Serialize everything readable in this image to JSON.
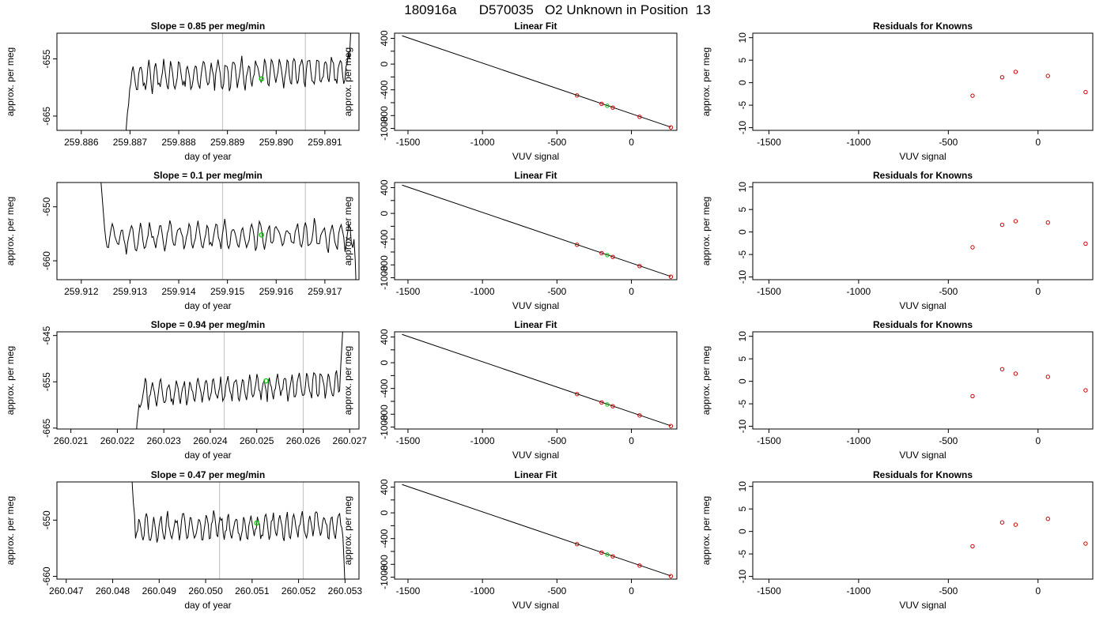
{
  "figure": {
    "title": "180916a      D570035   O2 Unknown in Position  13",
    "colors": {
      "trace": "#000000",
      "marker": "#00cc00",
      "known_point": "#cc0000",
      "vline": "#c8c8c8",
      "axis": "#000000"
    }
  },
  "chart_data": [
    {
      "type": "line",
      "row": 0,
      "col": 0,
      "title": "Slope =  0.85  per meg/min",
      "xlabel": "day of year",
      "ylabel": "approx. per meg",
      "xlim": [
        259.8855,
        259.8917
      ],
      "ylim": [
        -667.5,
        -650.5
      ],
      "xticks": [
        259.886,
        259.887,
        259.888,
        259.889,
        259.89,
        259.891
      ],
      "xtick_labels": [
        "259.886",
        "259.887",
        "259.888",
        "259.889",
        "259.890",
        "259.891"
      ],
      "yticks": [
        -665,
        -655
      ],
      "ytick_labels": [
        "-665",
        "-655"
      ],
      "vlines": [
        259.8889,
        259.8906
      ],
      "marker": {
        "x": 259.8897,
        "y": -658.5
      },
      "trace": {
        "x_start": 259.8869,
        "x_end": 259.89155,
        "n": 200,
        "level": -657.5,
        "start_values": [
          -680,
          -667,
          -664.5,
          -663
        ],
        "end_values": [
          -655,
          -651,
          -647
        ],
        "trend": 0.8,
        "amp": 2.4,
        "seed": 7
      }
    },
    {
      "type": "scatter",
      "row": 0,
      "col": 1,
      "title": "Linear Fit",
      "xlabel": "VUV signal",
      "ylabel": "approx. per meg",
      "xlim": [
        -1590,
        305
      ],
      "ylim": [
        -1030,
        480
      ],
      "xticks": [
        -1500,
        -1000,
        -500,
        0
      ],
      "xtick_labels": [
        "-1500",
        "-1000",
        "-500",
        "0"
      ],
      "yticks": [
        400,
        200,
        0,
        -200,
        -400,
        -600,
        -800,
        -1000
      ],
      "ytick_labels": [
        "400",
        "",
        "0",
        "",
        "-400",
        "",
        "-800",
        "-1000"
      ],
      "fit_line": {
        "x": [
          -1540,
          265
        ],
        "y": [
          440,
          -980
        ]
      },
      "points": [
        {
          "x": -365,
          "y": -487
        },
        {
          "x": -200,
          "y": -618
        },
        {
          "x": -125,
          "y": -676
        },
        {
          "x": 55,
          "y": -819
        },
        {
          "x": 265,
          "y": -984
        }
      ],
      "unknown_point": {
        "x": -162,
        "y": -648
      }
    },
    {
      "type": "scatter",
      "row": 0,
      "col": 2,
      "title": "Residuals for Knowns",
      "xlabel": "VUV signal",
      "ylabel": "approx. per meg",
      "xlim": [
        -1590,
        305
      ],
      "ylim": [
        -10.6,
        11
      ],
      "xticks": [
        -1500,
        -1000,
        -500,
        0
      ],
      "xtick_labels": [
        "-1500",
        "-1000",
        "-500",
        "0"
      ],
      "yticks": [
        10,
        5,
        0,
        -5,
        -10
      ],
      "ytick_labels": [
        "10",
        "5",
        "0",
        "-5",
        "-10"
      ],
      "points": [
        {
          "x": -365,
          "y": -2.9
        },
        {
          "x": -200,
          "y": 1.2
        },
        {
          "x": -125,
          "y": 2.4
        },
        {
          "x": 55,
          "y": 1.5
        },
        {
          "x": 265,
          "y": -2.1
        }
      ]
    },
    {
      "type": "line",
      "row": 1,
      "col": 0,
      "title": "Slope =  0.1  per meg/min",
      "xlabel": "day of year",
      "ylabel": "approx. per meg",
      "xlim": [
        259.9115,
        259.9177
      ],
      "ylim": [
        -663.5,
        -645.5
      ],
      "xticks": [
        259.912,
        259.913,
        259.914,
        259.915,
        259.916,
        259.917
      ],
      "xtick_labels": [
        "259.912",
        "259.913",
        "259.914",
        "259.915",
        "259.916",
        "259.917"
      ],
      "yticks": [
        -660,
        -650
      ],
      "ytick_labels": [
        "-660",
        "-650"
      ],
      "vlines": [
        259.9149,
        259.9166
      ],
      "marker": {
        "x": 259.9157,
        "y": -655.2
      },
      "trace": {
        "x_start": 259.9124,
        "x_end": 259.91765,
        "n": 200,
        "level": -655.5,
        "start_values": [
          -645,
          -648,
          -651,
          -654
        ],
        "end_values": [
          -656,
          -660,
          -667
        ],
        "trend": 0.1,
        "amp": 2.3,
        "seed": 11
      }
    },
    {
      "type": "scatter",
      "row": 1,
      "col": 1,
      "title": "Linear Fit",
      "xlabel": "VUV signal",
      "ylabel": "approx. per meg",
      "xlim": [
        -1590,
        305
      ],
      "ylim": [
        -1030,
        480
      ],
      "xticks": [
        -1500,
        -1000,
        -500,
        0
      ],
      "xtick_labels": [
        "-1500",
        "-1000",
        "-500",
        "0"
      ],
      "yticks": [
        400,
        200,
        0,
        -200,
        -400,
        -600,
        -800,
        -1000
      ],
      "ytick_labels": [
        "400",
        "",
        "0",
        "",
        "-400",
        "",
        "-800",
        "-1000"
      ],
      "fit_line": {
        "x": [
          -1540,
          265
        ],
        "y": [
          440,
          -980
        ]
      },
      "points": [
        {
          "x": -365,
          "y": -487
        },
        {
          "x": -200,
          "y": -618
        },
        {
          "x": -125,
          "y": -676
        },
        {
          "x": 55,
          "y": -819
        },
        {
          "x": 265,
          "y": -984
        }
      ],
      "unknown_point": {
        "x": -162,
        "y": -648
      }
    },
    {
      "type": "scatter",
      "row": 1,
      "col": 2,
      "title": "Residuals for Knowns",
      "xlabel": "VUV signal",
      "ylabel": "approx. per meg",
      "xlim": [
        -1590,
        305
      ],
      "ylim": [
        -10.6,
        11
      ],
      "xticks": [
        -1500,
        -1000,
        -500,
        0
      ],
      "xtick_labels": [
        "-1500",
        "-1000",
        "-500",
        "0"
      ],
      "yticks": [
        10,
        5,
        0,
        -5,
        -10
      ],
      "ytick_labels": [
        "10",
        "5",
        "0",
        "-5",
        "-10"
      ],
      "points": [
        {
          "x": -365,
          "y": -3.4
        },
        {
          "x": -200,
          "y": 1.6
        },
        {
          "x": -125,
          "y": 2.4
        },
        {
          "x": 55,
          "y": 2.1
        },
        {
          "x": 265,
          "y": -2.6
        }
      ]
    },
    {
      "type": "line",
      "row": 2,
      "col": 0,
      "title": "Slope =  0.94  per meg/min",
      "xlabel": "day of year",
      "ylabel": "approx. per meg",
      "xlim": [
        260.0207,
        260.0272
      ],
      "ylim": [
        -665.2,
        -644.2
      ],
      "xticks": [
        260.021,
        260.022,
        260.023,
        260.024,
        260.025,
        260.026,
        260.027
      ],
      "xtick_labels": [
        "260.021",
        "260.022",
        "260.023",
        "260.024",
        "260.025",
        "260.026",
        "260.027"
      ],
      "yticks": [
        -665,
        -655,
        -645
      ],
      "ytick_labels": [
        "-665",
        "-655",
        "-645"
      ],
      "vlines": [
        260.0243,
        260.026
      ],
      "marker": {
        "x": 260.0252,
        "y": -654.8
      },
      "trace": {
        "x_start": 260.0224,
        "x_end": 260.02685,
        "n": 200,
        "level": -656.5,
        "start_values": [
          -668,
          -664,
          -662,
          -660
        ],
        "end_values": [
          -652,
          -648,
          -644
        ],
        "trend": 1.2,
        "amp": 2.6,
        "seed": 19
      }
    },
    {
      "type": "scatter",
      "row": 2,
      "col": 1,
      "title": "Linear Fit",
      "xlabel": "VUV signal",
      "ylabel": "approx. per meg",
      "xlim": [
        -1590,
        305
      ],
      "ylim": [
        -1030,
        480
      ],
      "xticks": [
        -1500,
        -1000,
        -500,
        0
      ],
      "xtick_labels": [
        "-1500",
        "-1000",
        "-500",
        "0"
      ],
      "yticks": [
        400,
        200,
        0,
        -200,
        -400,
        -600,
        -800,
        -1000
      ],
      "ytick_labels": [
        "400",
        "",
        "0",
        "",
        "-400",
        "",
        "-800",
        "-1000"
      ],
      "fit_line": {
        "x": [
          -1540,
          265
        ],
        "y": [
          440,
          -980
        ]
      },
      "points": [
        {
          "x": -365,
          "y": -487
        },
        {
          "x": -200,
          "y": -618
        },
        {
          "x": -125,
          "y": -676
        },
        {
          "x": 55,
          "y": -819
        },
        {
          "x": 265,
          "y": -984
        }
      ],
      "unknown_point": {
        "x": -162,
        "y": -648
      }
    },
    {
      "type": "scatter",
      "row": 2,
      "col": 2,
      "title": "Residuals for Knowns",
      "xlabel": "VUV signal",
      "ylabel": "approx. per meg",
      "xlim": [
        -1590,
        305
      ],
      "ylim": [
        -10.6,
        11
      ],
      "xticks": [
        -1500,
        -1000,
        -500,
        0
      ],
      "xtick_labels": [
        "-1500",
        "-1000",
        "-500",
        "0"
      ],
      "yticks": [
        10,
        5,
        0,
        -5,
        -10
      ],
      "ytick_labels": [
        "10",
        "5",
        "0",
        "-5",
        "-10"
      ],
      "points": [
        {
          "x": -365,
          "y": -3.3
        },
        {
          "x": -200,
          "y": 2.7
        },
        {
          "x": -125,
          "y": 1.7
        },
        {
          "x": 55,
          "y": 1.0
        },
        {
          "x": 265,
          "y": -2.0
        }
      ]
    },
    {
      "type": "line",
      "row": 3,
      "col": 0,
      "title": "Slope =  0.47  per meg/min",
      "xlabel": "day of year",
      "ylabel": "approx. per meg",
      "xlim": [
        260.0468,
        260.0533
      ],
      "ylim": [
        -660.5,
        -643.2
      ],
      "xticks": [
        260.047,
        260.048,
        260.049,
        260.05,
        260.051,
        260.052,
        260.053
      ],
      "xtick_labels": [
        "260.047",
        "260.048",
        "260.049",
        "260.050",
        "260.051",
        "260.052",
        "260.053"
      ],
      "yticks": [
        -660,
        -650
      ],
      "ytick_labels": [
        "-660",
        "-650"
      ],
      "vlines": [
        260.0503,
        260.0521
      ],
      "marker": {
        "x": 260.0511,
        "y": -650.5
      },
      "trace": {
        "x_start": 260.0484,
        "x_end": 260.053,
        "n": 200,
        "level": -651.2,
        "start_values": [
          -640,
          -644,
          -647,
          -649
        ],
        "end_values": [
          -653,
          -657,
          -662
        ],
        "trend": 0.3,
        "amp": 2.2,
        "seed": 29
      }
    },
    {
      "type": "scatter",
      "row": 3,
      "col": 1,
      "title": "Linear Fit",
      "xlabel": "VUV signal",
      "ylabel": "approx. per meg",
      "xlim": [
        -1590,
        305
      ],
      "ylim": [
        -1030,
        480
      ],
      "xticks": [
        -1500,
        -1000,
        -500,
        0
      ],
      "xtick_labels": [
        "-1500",
        "-1000",
        "-500",
        "0"
      ],
      "yticks": [
        400,
        200,
        0,
        -200,
        -400,
        -600,
        -800,
        -1000
      ],
      "ytick_labels": [
        "400",
        "",
        "0",
        "",
        "-400",
        "",
        "-800",
        "-1000"
      ],
      "fit_line": {
        "x": [
          -1540,
          265
        ],
        "y": [
          440,
          -980
        ]
      },
      "points": [
        {
          "x": -365,
          "y": -487
        },
        {
          "x": -200,
          "y": -618
        },
        {
          "x": -125,
          "y": -676
        },
        {
          "x": 55,
          "y": -819
        },
        {
          "x": 265,
          "y": -984
        }
      ],
      "unknown_point": {
        "x": -162,
        "y": -648
      }
    },
    {
      "type": "scatter",
      "row": 3,
      "col": 2,
      "title": "Residuals for Knowns",
      "xlabel": "VUV signal",
      "ylabel": "approx. per meg",
      "xlim": [
        -1590,
        305
      ],
      "ylim": [
        -10.6,
        11
      ],
      "xticks": [
        -1500,
        -1000,
        -500,
        0
      ],
      "xtick_labels": [
        "-1500",
        "-1000",
        "-500",
        "0"
      ],
      "yticks": [
        10,
        5,
        0,
        -5,
        -10
      ],
      "ytick_labels": [
        "10",
        "5",
        "0",
        "-5",
        "-10"
      ],
      "points": [
        {
          "x": -365,
          "y": -3.3
        },
        {
          "x": -200,
          "y": 2.0
        },
        {
          "x": -125,
          "y": 1.5
        },
        {
          "x": 55,
          "y": 2.8
        },
        {
          "x": 265,
          "y": -2.7
        }
      ]
    }
  ]
}
